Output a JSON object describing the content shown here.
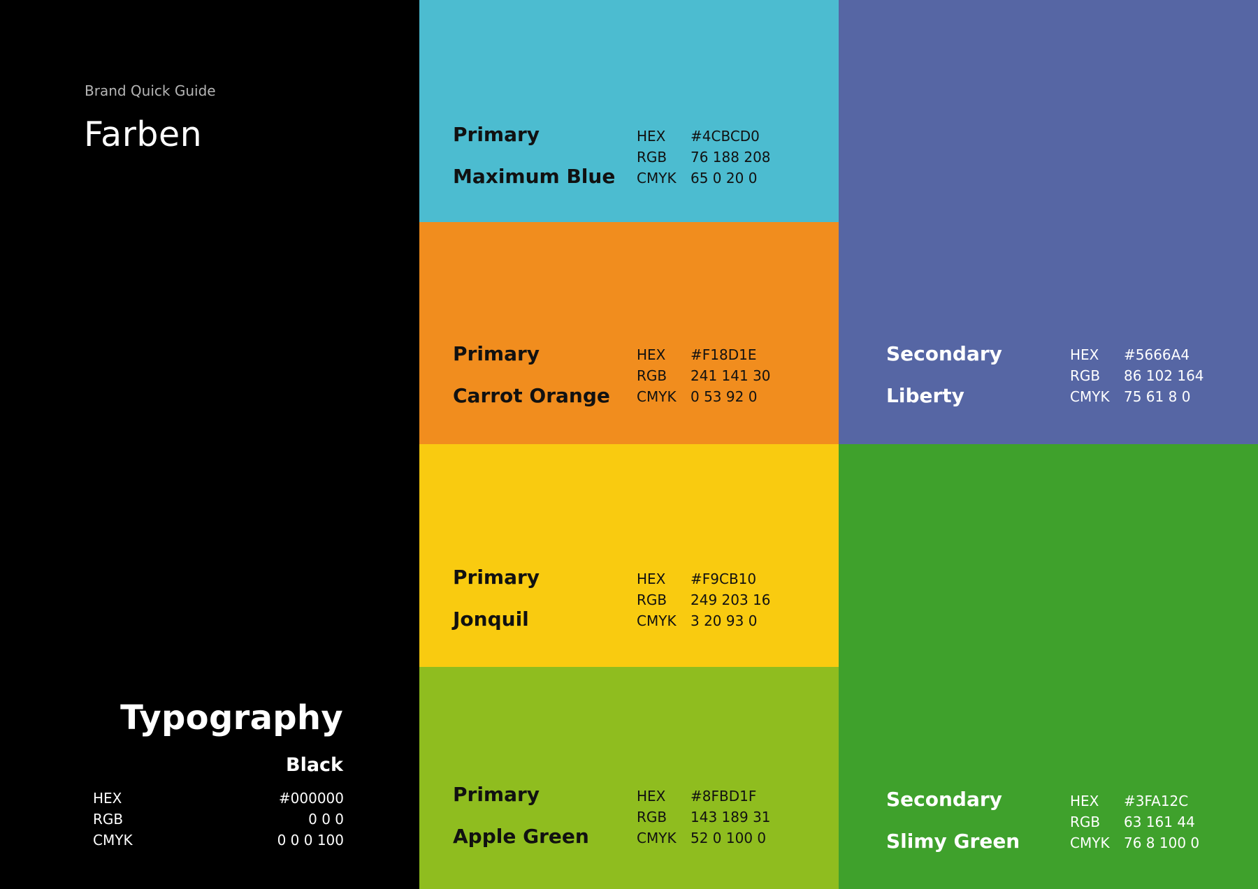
{
  "left": {
    "kicker": "Brand Quick Guide",
    "title": "Farben",
    "typography": {
      "heading": "Typography",
      "name": "Black",
      "codes": [
        {
          "key": "HEX",
          "value": "#000000"
        },
        {
          "key": "RGB",
          "value": "0 0 0"
        },
        {
          "key": "CMYK",
          "value": "0 0 0 100"
        }
      ]
    }
  },
  "swatches": [
    {
      "type": "Primary",
      "name": "Maximum Blue",
      "bg": "#4CBCD0",
      "text_color": "#111111",
      "codes": [
        {
          "key": "HEX",
          "value": "#4CBCD0"
        },
        {
          "key": "RGB",
          "value": "76 188 208"
        },
        {
          "key": "CMYK",
          "value": "65 0 20 0"
        }
      ]
    },
    {
      "type": "Primary",
      "name": "Carrot Orange",
      "bg": "#F18D1E",
      "text_color": "#111111",
      "codes": [
        {
          "key": "HEX",
          "value": "#F18D1E"
        },
        {
          "key": "RGB",
          "value": "241 141 30"
        },
        {
          "key": "CMYK",
          "value": "0 53 92 0"
        }
      ]
    },
    {
      "type": "Primary",
      "name": "Jonquil",
      "bg": "#F9CB10",
      "text_color": "#111111",
      "codes": [
        {
          "key": "HEX",
          "value": "#F9CB10"
        },
        {
          "key": "RGB",
          "value": "249 203 16"
        },
        {
          "key": "CMYK",
          "value": "3 20 93 0"
        }
      ]
    },
    {
      "type": "Primary",
      "name": "Apple Green",
      "bg": "#8FBD1F",
      "text_color": "#111111",
      "codes": [
        {
          "key": "HEX",
          "value": "#8FBD1F"
        },
        {
          "key": "RGB",
          "value": "143 189 31"
        },
        {
          "key": "CMYK",
          "value": "52 0 100 0"
        }
      ]
    },
    {
      "type": "Secondary",
      "name": "Liberty",
      "bg": "#5666A4",
      "text_color": "#FFFFFF",
      "codes": [
        {
          "key": "HEX",
          "value": "#5666A4"
        },
        {
          "key": "RGB",
          "value": "86 102 164"
        },
        {
          "key": "CMYK",
          "value": "75 61 8 0"
        }
      ]
    },
    {
      "type": "Secondary",
      "name": "Slimy Green",
      "bg": "#3FA12C",
      "text_color": "#FFFFFF",
      "codes": [
        {
          "key": "HEX",
          "value": "#3FA12C"
        },
        {
          "key": "RGB",
          "value": "63 161 44"
        },
        {
          "key": "CMYK",
          "value": "76 8 100 0"
        }
      ]
    }
  ]
}
